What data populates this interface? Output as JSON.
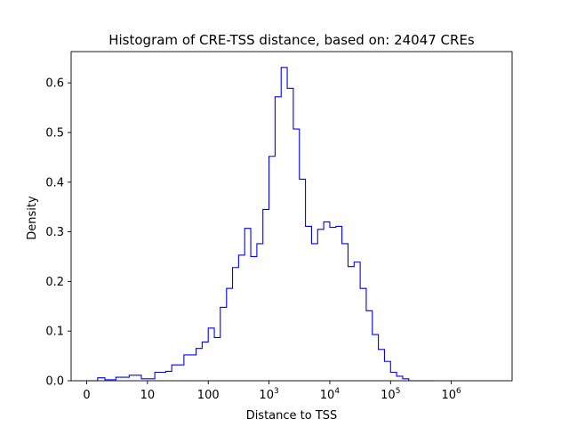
{
  "chart_data": {
    "type": "histogram",
    "title": "Histogram of CRE-TSS distance, based on: 24047 CREs",
    "xlabel": "Distance to TSS",
    "ylabel": "Density",
    "x_scale": "symlog",
    "x_linthresh": 10,
    "xlim": [
      -2.56,
      10000000
    ],
    "ylim": [
      0,
      0.663
    ],
    "x_ticks": [
      {
        "value": 0,
        "label": "0",
        "base": "0",
        "exp": ""
      },
      {
        "value": 10,
        "label": "10",
        "base": "10",
        "exp": ""
      },
      {
        "value": 100,
        "label": "100",
        "base": "100",
        "exp": ""
      },
      {
        "value": 1000,
        "label": "10^3",
        "base": "10",
        "exp": "3"
      },
      {
        "value": 10000,
        "label": "10^4",
        "base": "10",
        "exp": "4"
      },
      {
        "value": 100000,
        "label": "10^5",
        "base": "10",
        "exp": "5"
      },
      {
        "value": 1000000,
        "label": "10^6",
        "base": "10",
        "exp": "6"
      }
    ],
    "y_ticks": [
      {
        "value": 0.0,
        "label": "0.0"
      },
      {
        "value": 0.1,
        "label": "0.1"
      },
      {
        "value": 0.2,
        "label": "0.2"
      },
      {
        "value": 0.3,
        "label": "0.3"
      },
      {
        "value": 0.4,
        "label": "0.4"
      },
      {
        "value": 0.5,
        "label": "0.5"
      },
      {
        "value": 0.6,
        "label": "0.6"
      }
    ],
    "series": [
      {
        "color": "#0000ff",
        "bin_edges": [
          0,
          1.8,
          3.0,
          4.8,
          7.0,
          9.0,
          13.2,
          20.0,
          25.1,
          39.8,
          50.1,
          63.1,
          79.4,
          100,
          126,
          158,
          200,
          251,
          316,
          398,
          501,
          631,
          794,
          1000,
          1259,
          1585,
          1995,
          2512,
          3162,
          3981,
          5012,
          6310,
          7943,
          10000,
          12589,
          15849,
          19953,
          25119,
          31623,
          39811,
          50119,
          63096,
          79433,
          100000,
          125893,
          158489,
          199526,
          251189,
          316228,
          398107,
          501187
        ],
        "density": [
          0.0,
          0.006,
          0.002,
          0.007,
          0.011,
          0.004,
          0.017,
          0.019,
          0.032,
          0.052,
          0.052,
          0.065,
          0.078,
          0.106,
          0.087,
          0.148,
          0.186,
          0.228,
          0.253,
          0.307,
          0.25,
          0.276,
          0.345,
          0.452,
          0.572,
          0.631,
          0.589,
          0.507,
          0.406,
          0.311,
          0.276,
          0.305,
          0.32,
          0.309,
          0.311,
          0.276,
          0.23,
          0.239,
          0.186,
          0.141,
          0.093,
          0.063,
          0.039,
          0.017,
          0.009,
          0.004,
          0.0,
          0.0,
          0.0,
          0.0
        ]
      }
    ]
  }
}
